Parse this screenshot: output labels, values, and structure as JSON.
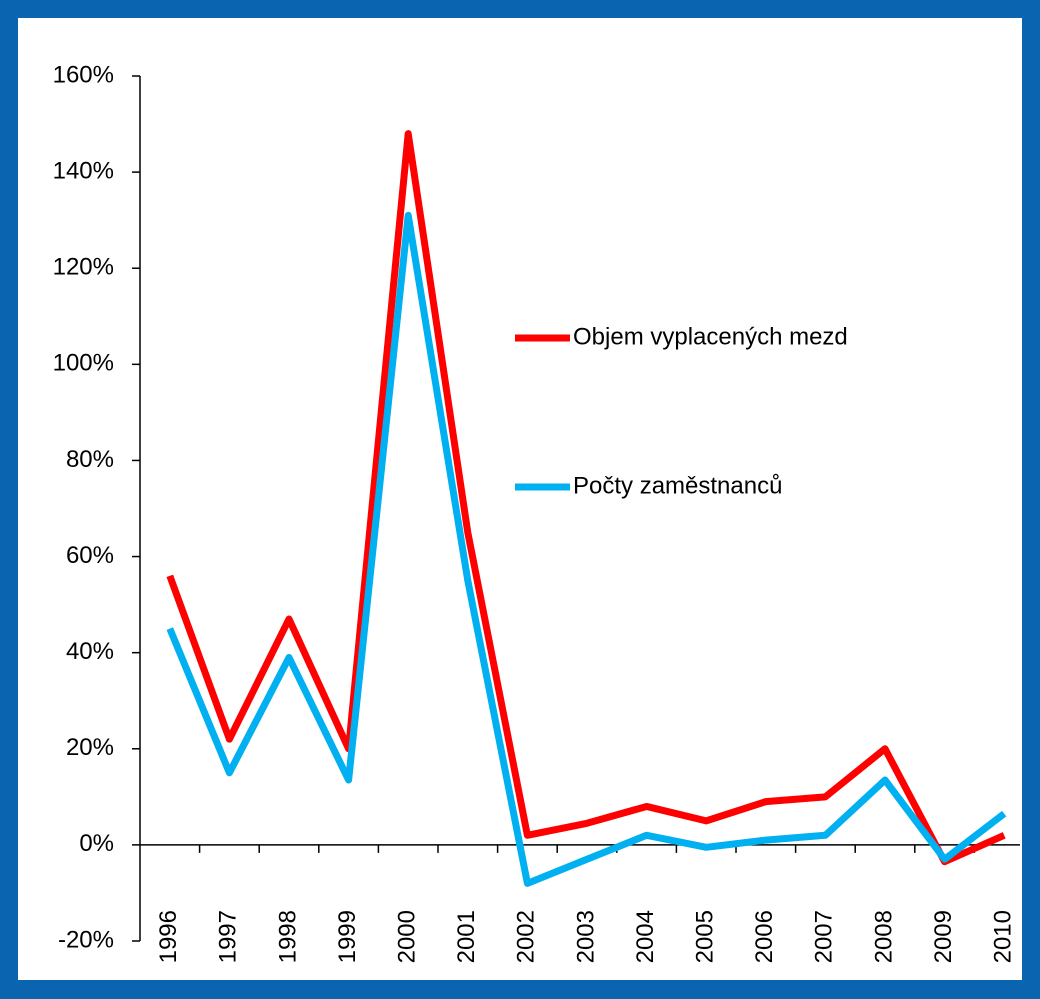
{
  "chart_data": {
    "type": "line",
    "categories": [
      "1996",
      "1997",
      "1998",
      "1999",
      "2000",
      "2001",
      "2002",
      "2003",
      "2004",
      "2005",
      "2006",
      "2007",
      "2008",
      "2009",
      "2010"
    ],
    "series": [
      {
        "name": "Objem vyplacených mezd",
        "color": "#ff0000",
        "values": [
          56,
          22,
          47,
          20,
          148,
          65,
          2,
          4.5,
          8,
          5,
          9,
          10,
          20,
          -3.5,
          2
        ]
      },
      {
        "name": "Počty zaměstnanců",
        "color": "#00b0f0",
        "values": [
          45,
          15,
          39,
          13.5,
          131,
          55,
          -8,
          -3,
          2,
          -0.5,
          1,
          2,
          13.5,
          -3,
          6.5
        ]
      }
    ],
    "ylim": [
      -20,
      160
    ],
    "yticks": [
      {
        "value": -20,
        "label": "-20%"
      },
      {
        "value": 0,
        "label": "0%"
      },
      {
        "value": 20,
        "label": "20%"
      },
      {
        "value": 40,
        "label": "40%"
      },
      {
        "value": 60,
        "label": "60%"
      },
      {
        "value": 80,
        "label": "80%"
      },
      {
        "value": 100,
        "label": "100%"
      },
      {
        "value": 120,
        "label": "120%"
      },
      {
        "value": 140,
        "label": "140%"
      },
      {
        "value": 160,
        "label": "160%"
      }
    ],
    "grid": false
  }
}
